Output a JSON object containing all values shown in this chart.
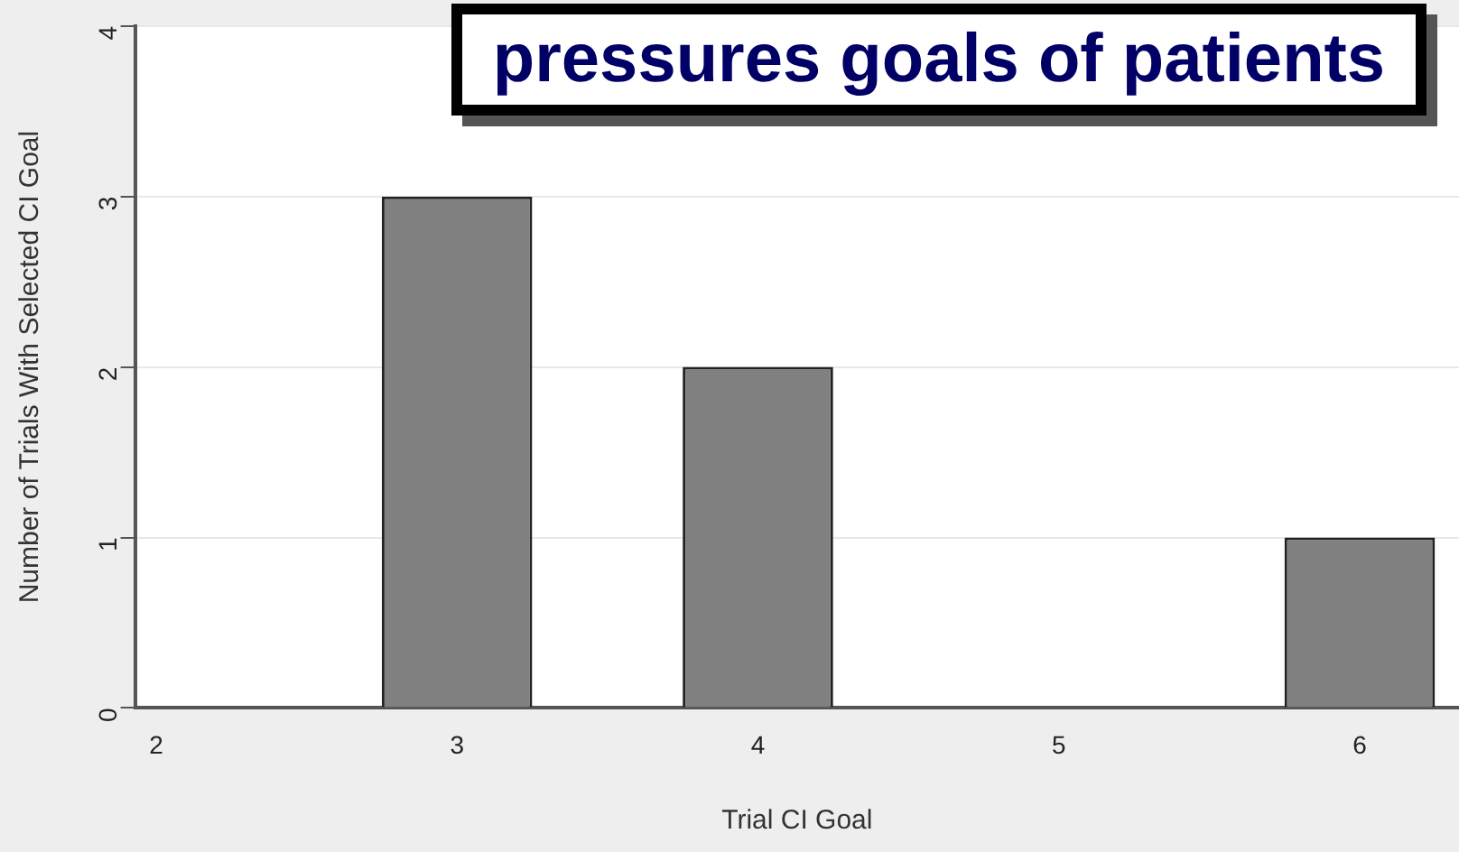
{
  "chart_data": {
    "type": "bar",
    "xlabel": "Trial CI Goal",
    "ylabel": "Number of Trials With Selected CI Goal",
    "x": [
      3,
      4,
      6
    ],
    "values": [
      3,
      2,
      1
    ],
    "color": "#808080",
    "xlim": [
      1.93,
      6.33
    ],
    "xticks": [
      2,
      3,
      4,
      5,
      6
    ],
    "ylim": [
      0,
      4
    ],
    "yticks": [
      0,
      1,
      2,
      3,
      4
    ],
    "grid": "y",
    "annotations": [
      "pressures goals of patients"
    ]
  }
}
